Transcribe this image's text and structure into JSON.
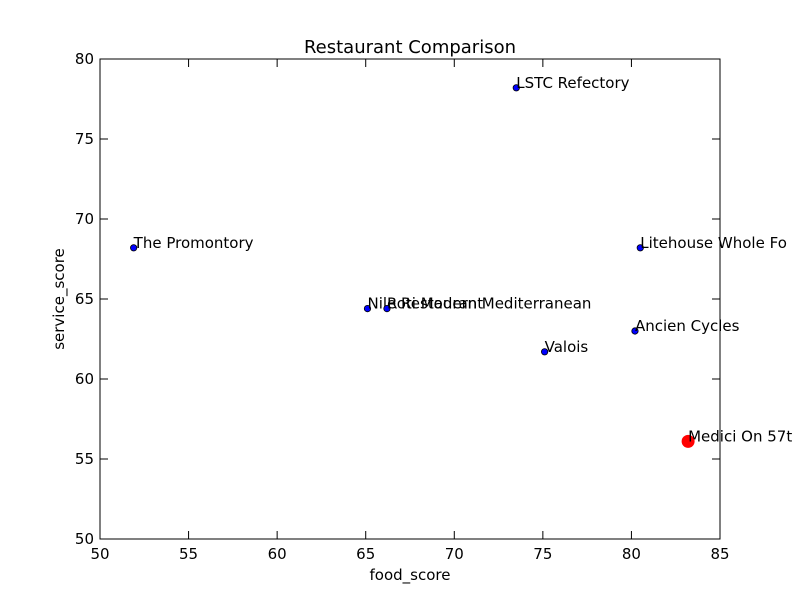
{
  "chart_data": {
    "type": "scatter",
    "title": "Restaurant Comparison",
    "xlabel": "food_score",
    "ylabel": "service_score",
    "xlim": [
      50,
      85
    ],
    "ylim": [
      50,
      80
    ],
    "xticks": [
      50,
      55,
      60,
      65,
      70,
      75,
      80,
      85
    ],
    "yticks": [
      50,
      55,
      60,
      65,
      70,
      75,
      80
    ],
    "grid": false,
    "point_color": "#0000ff",
    "highlight_color": "#ff0000",
    "points": [
      {
        "label": "LSTC Refectory",
        "x": 73.5,
        "y": 78.2,
        "highlight": false
      },
      {
        "label": "The Promontory",
        "x": 51.9,
        "y": 68.2,
        "highlight": false
      },
      {
        "label": "Litehouse Whole Fo",
        "x": 80.5,
        "y": 68.2,
        "highlight": false
      },
      {
        "label": "Nile Restaurant",
        "x": 65.1,
        "y": 64.4,
        "highlight": false
      },
      {
        "label": "Roti Modern Mediterranean",
        "x": 66.2,
        "y": 64.4,
        "highlight": false
      },
      {
        "label": "Ancien Cycles",
        "x": 80.2,
        "y": 63.0,
        "highlight": false
      },
      {
        "label": "Valois",
        "x": 75.1,
        "y": 61.7,
        "highlight": false
      },
      {
        "label": "Medici On 57t",
        "x": 83.2,
        "y": 56.1,
        "highlight": true
      }
    ]
  }
}
